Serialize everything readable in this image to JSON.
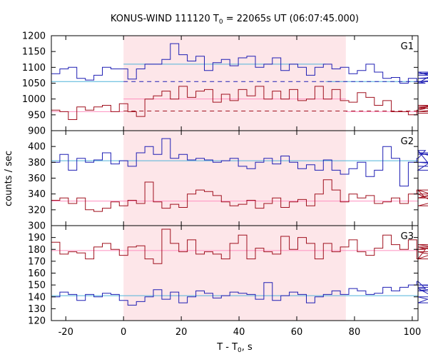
{
  "chart_data": [
    {
      "type": "line",
      "title_main": "KONUS-WIND 111120 T",
      "title_sub": "0",
      "title_rest": " = 22065s UT (06:07:45.000)",
      "xlabel_main": "T - T",
      "xlabel_sub": "0",
      "xlabel_rest": ", s",
      "ylabel": "counts / sec",
      "xlim": [
        -25,
        102
      ],
      "xticks": [
        -20,
        0,
        20,
        40,
        60,
        80,
        100
      ],
      "shaded_interval": [
        0,
        77
      ],
      "shade_color": "#fde6e9",
      "bin_width": 2.944,
      "bin_start": -25.0,
      "panels": [
        {
          "name": "G1",
          "ylim": [
            900,
            1200
          ],
          "yticks": [
            900,
            950,
            1000,
            1050,
            1100,
            1150,
            1200
          ],
          "series": [
            {
              "color": "#1f1fb4",
              "values": [
                1080,
                1095,
                1100,
                1065,
                1060,
                1075,
                1100,
                1095,
                1095,
                1063,
                1095,
                1110,
                1110,
                1125,
                1175,
                1140,
                1120,
                1135,
                1090,
                1115,
                1125,
                1105,
                1130,
                1135,
                1100,
                1110,
                1130,
                1090,
                1110,
                1100,
                1075,
                1100,
                1110,
                1095,
                1100,
                1080,
                1090,
                1110,
                1085,
                1065,
                1068,
                1050,
                1065,
                1055,
                1050,
                1080,
                1085,
                1055,
                1065,
                1075
              ]
            },
            {
              "color": "#a0101e",
              "values": [
                965,
                960,
                935,
                975,
                965,
                975,
                980,
                960,
                985,
                960,
                945,
                1000,
                1010,
                1025,
                1000,
                1040,
                1005,
                1025,
                1030,
                990,
                1015,
                995,
                1030,
                1010,
                1040,
                1000,
                1025,
                1000,
                1030,
                995,
                1000,
                1040,
                1000,
                1030,
                995,
                990,
                1020,
                1005,
                980,
                995,
                960,
                960,
                950,
                965,
                970,
                980,
                975,
                960,
                975,
                955
              ]
            }
          ],
          "levels": [
            {
              "color": "#4fb3d9",
              "dash": false,
              "segments": [
                [
                  -25,
                  0,
                  1055
                ],
                [
                  0,
                  70,
                  1110
                ],
                [
                  70,
                  102,
                  1055
                ]
              ]
            },
            {
              "color": "#1f1fb4",
              "dash": true,
              "segments": [
                [
                  0,
                  102,
                  1055
                ]
              ]
            },
            {
              "color": "#ff8fbf",
              "dash": false,
              "segments": [
                [
                  -25,
                  0,
                  960
                ],
                [
                  0,
                  77,
                  1000
                ],
                [
                  77,
                  102,
                  960
                ]
              ]
            },
            {
              "color": "#a0101e",
              "dash": true,
              "segments": [
                [
                  0,
                  102,
                  962
                ]
              ]
            }
          ]
        },
        {
          "name": "G2",
          "ylim": [
            300,
            420
          ],
          "yticks": [
            300,
            320,
            340,
            360,
            380,
            400
          ],
          "series": [
            {
              "color": "#1f1fb4",
              "values": [
                380,
                390,
                370,
                385,
                380,
                383,
                392,
                378,
                382,
                375,
                392,
                400,
                390,
                410,
                385,
                390,
                383,
                385,
                383,
                380,
                382,
                385,
                375,
                372,
                380,
                385,
                378,
                388,
                380,
                372,
                377,
                370,
                383,
                370,
                365,
                372,
                380,
                362,
                370,
                400,
                385,
                350,
                380,
                385,
                395,
                370,
                390,
                392,
                380,
                375
              ]
            },
            {
              "color": "#a0101e",
              "values": [
                332,
                335,
                328,
                335,
                320,
                318,
                322,
                330,
                325,
                332,
                328,
                355,
                330,
                322,
                327,
                323,
                340,
                345,
                343,
                338,
                330,
                325,
                327,
                332,
                322,
                328,
                335,
                323,
                330,
                333,
                325,
                340,
                358,
                345,
                330,
                340,
                335,
                338,
                328,
                330,
                335,
                328,
                340,
                345,
                335,
                340,
                325,
                335,
                345,
                325
              ]
            }
          ],
          "levels": [
            {
              "color": "#4fb3d9",
              "dash": false,
              "segments": [
                [
                  -25,
                  102,
                  382
                ]
              ]
            },
            {
              "color": "#ff8fbf",
              "dash": false,
              "segments": [
                [
                  -25,
                  102,
                  331
                ]
              ]
            }
          ]
        },
        {
          "name": "G3",
          "ylim": [
            120,
            200
          ],
          "yticks": [
            120,
            130,
            140,
            150,
            160,
            170,
            180,
            190,
            200
          ],
          "series": [
            {
              "color": "#a0101e",
              "values": [
                186,
                176,
                178,
                177,
                172,
                182,
                185,
                180,
                175,
                182,
                183,
                172,
                168,
                197,
                185,
                178,
                188,
                176,
                178,
                176,
                172,
                185,
                192,
                172,
                181,
                178,
                176,
                191,
                180,
                190,
                185,
                172,
                185,
                178,
                182,
                188,
                178,
                175,
                181,
                192,
                184,
                180,
                188,
                172,
                180,
                182,
                178,
                172,
                184,
                178
              ]
            },
            {
              "color": "#1f1fb4",
              "values": [
                140,
                144,
                142,
                137,
                142,
                140,
                143,
                142,
                137,
                133,
                136,
                140,
                146,
                138,
                144,
                135,
                140,
                145,
                143,
                139,
                141,
                144,
                143,
                142,
                138,
                152,
                137,
                141,
                144,
                142,
                135,
                140,
                142,
                145,
                142,
                147,
                145,
                142,
                143,
                148,
                145,
                148,
                150,
                153,
                147,
                140,
                135,
                145,
                150,
                148
              ]
            }
          ],
          "levels": [
            {
              "color": "#ff8fbf",
              "dash": false,
              "segments": [
                [
                  -25,
                  102,
                  179
                ]
              ]
            },
            {
              "color": "#4fb3d9",
              "dash": false,
              "segments": [
                [
                  -25,
                  102,
                  141
                ]
              ]
            }
          ]
        }
      ]
    }
  ]
}
